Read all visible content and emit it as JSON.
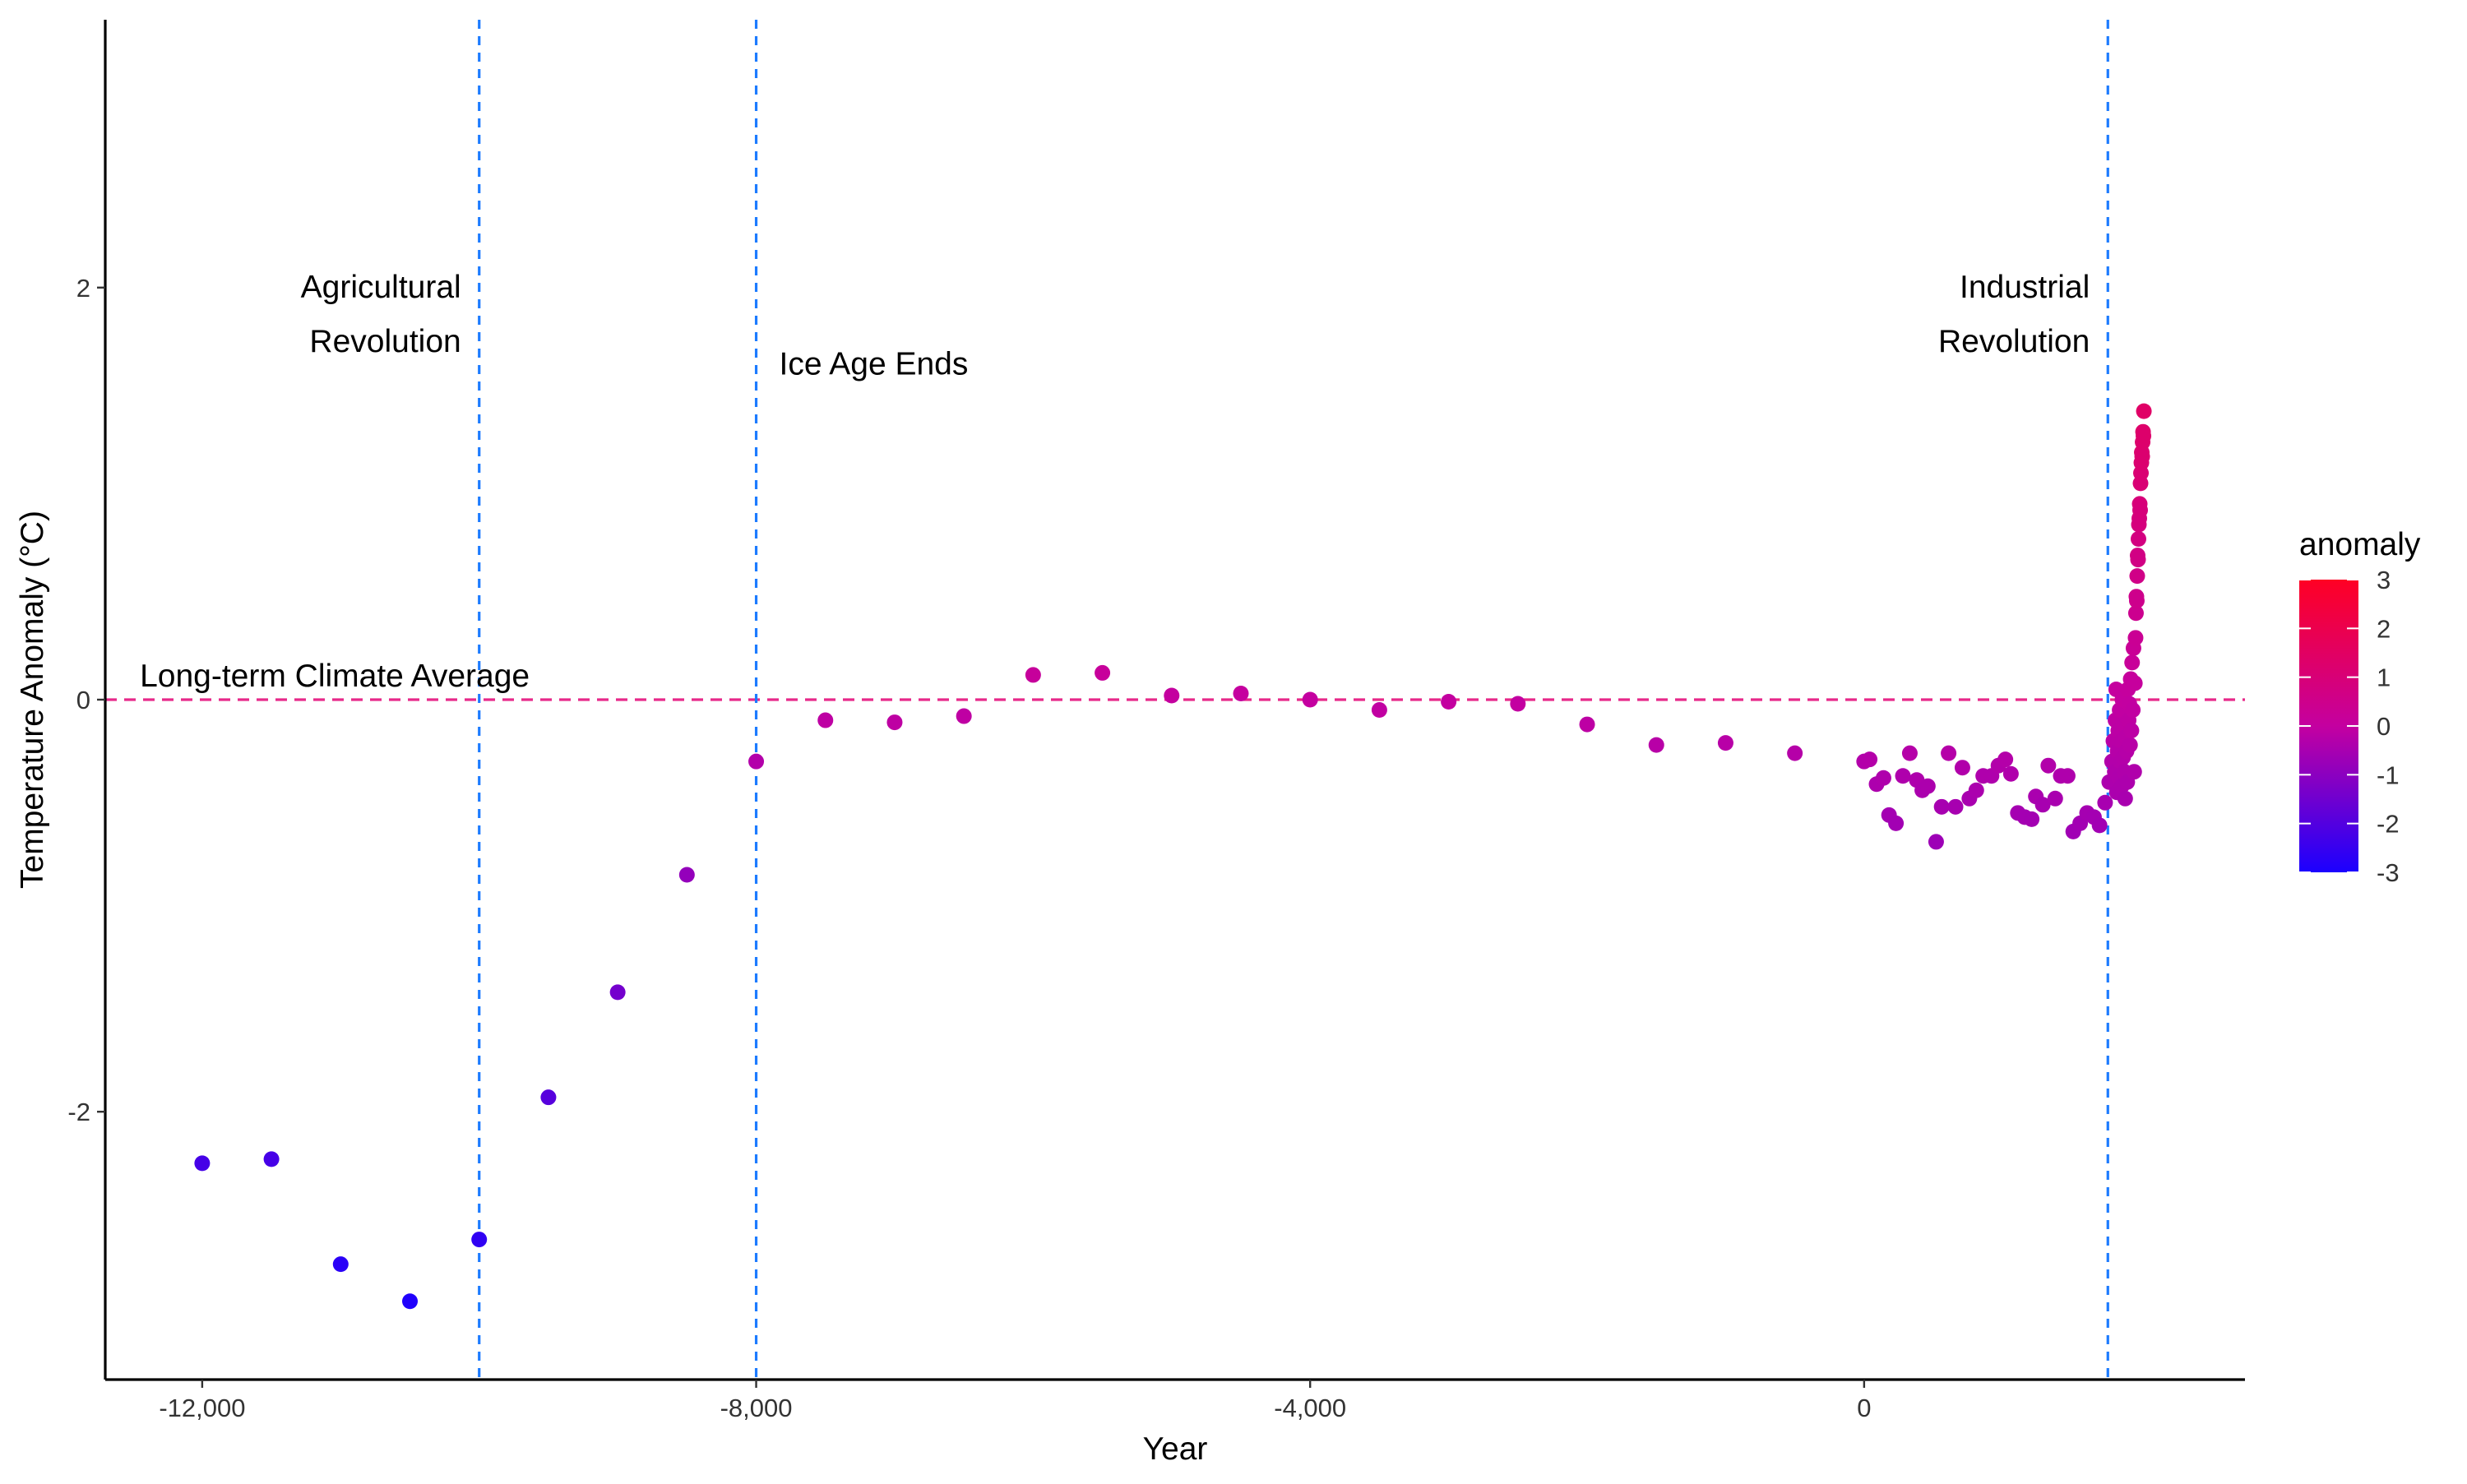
{
  "chart_data": {
    "type": "scatter",
    "xlabel": "Year",
    "ylabel": "Temperature Anomaly (°C)",
    "xlim": [
      -12700,
      2750
    ],
    "ylim": [
      -3.3,
      3.3
    ],
    "x_ticks": [
      -12000,
      -8000,
      -4000,
      0
    ],
    "x_tick_labels": [
      "-12,000",
      "-8,000",
      "-4,000",
      "0"
    ],
    "y_ticks": [
      -2,
      0,
      2
    ],
    "y_tick_labels": [
      "-2",
      "0",
      "2"
    ],
    "grid": false,
    "reference_line": {
      "y": 0,
      "color": "#E7298A",
      "style": "dashed",
      "label": "Long-term Climate Average"
    },
    "events": [
      {
        "x": -10000,
        "label_lines": [
          "Agricultural",
          "Revolution"
        ],
        "side": "left"
      },
      {
        "x": -8000,
        "label_lines": [
          "Ice Age Ends"
        ],
        "side": "right"
      },
      {
        "x": 1760,
        "label_lines": [
          "Industrial",
          "Revolution"
        ],
        "side": "left"
      }
    ],
    "event_line_color": "#1C7BFF",
    "color_scale": {
      "title": "anomaly",
      "low_color": "#1B00FF",
      "mid_color": "#C400A0",
      "high_color": "#FF0024",
      "ticks": [
        3,
        2,
        1,
        0,
        -1,
        -2,
        -3
      ],
      "tick_labels": [
        "3",
        "2",
        "1",
        "0",
        "-1",
        "-2",
        "-3"
      ],
      "placement": "right"
    },
    "points": [
      [
        -12000,
        -2.25
      ],
      [
        -11500,
        -2.23
      ],
      [
        -11000,
        -2.74
      ],
      [
        -10500,
        -2.92
      ],
      [
        -10000,
        -2.62
      ],
      [
        -9500,
        -1.93
      ],
      [
        -9000,
        -1.42
      ],
      [
        -8500,
        -0.85
      ],
      [
        -8000,
        -0.3
      ],
      [
        -7500,
        -0.1
      ],
      [
        -7000,
        -0.11
      ],
      [
        -6500,
        -0.08
      ],
      [
        -6000,
        0.12
      ],
      [
        -5500,
        0.13
      ],
      [
        -5000,
        0.02
      ],
      [
        -4500,
        0.03
      ],
      [
        -4000,
        0.0
      ],
      [
        -3500,
        -0.05
      ],
      [
        -3000,
        -0.01
      ],
      [
        -2500,
        -0.02
      ],
      [
        -2000,
        -0.12
      ],
      [
        -1500,
        -0.22
      ],
      [
        -1000,
        -0.21
      ],
      [
        -500,
        -0.26
      ],
      [
        0,
        -0.3
      ],
      [
        40,
        -0.29
      ],
      [
        90,
        -0.41
      ],
      [
        140,
        -0.38
      ],
      [
        180,
        -0.56
      ],
      [
        230,
        -0.6
      ],
      [
        280,
        -0.37
      ],
      [
        330,
        -0.26
      ],
      [
        380,
        -0.39
      ],
      [
        420,
        -0.44
      ],
      [
        460,
        -0.42
      ],
      [
        520,
        -0.69
      ],
      [
        560,
        -0.52
      ],
      [
        610,
        -0.26
      ],
      [
        660,
        -0.52
      ],
      [
        710,
        -0.33
      ],
      [
        760,
        -0.48
      ],
      [
        810,
        -0.44
      ],
      [
        860,
        -0.37
      ],
      [
        920,
        -0.37
      ],
      [
        970,
        -0.32
      ],
      [
        1020,
        -0.29
      ],
      [
        1060,
        -0.36
      ],
      [
        1110,
        -0.55
      ],
      [
        1160,
        -0.57
      ],
      [
        1210,
        -0.58
      ],
      [
        1240,
        -0.47
      ],
      [
        1290,
        -0.51
      ],
      [
        1330,
        -0.32
      ],
      [
        1380,
        -0.48
      ],
      [
        1420,
        -0.37
      ],
      [
        1470,
        -0.37
      ],
      [
        1510,
        -0.64
      ],
      [
        1560,
        -0.6
      ],
      [
        1610,
        -0.55
      ],
      [
        1660,
        -0.57
      ],
      [
        1700,
        -0.61
      ],
      [
        1740,
        -0.5
      ],
      [
        1770,
        -0.4
      ],
      [
        1790,
        -0.3
      ],
      [
        1800,
        -0.2
      ],
      [
        1810,
        -0.35
      ],
      [
        1815,
        -0.1
      ],
      [
        1820,
        0.05
      ],
      [
        1825,
        -0.45
      ],
      [
        1830,
        -0.25
      ],
      [
        1835,
        -0.15
      ],
      [
        1840,
        -0.38
      ],
      [
        1845,
        -0.05
      ],
      [
        1850,
        -0.3
      ],
      [
        1855,
        -0.2
      ],
      [
        1860,
        -0.42
      ],
      [
        1865,
        0.0
      ],
      [
        1870,
        -0.28
      ],
      [
        1875,
        -0.12
      ],
      [
        1880,
        -0.35
      ],
      [
        1885,
        -0.48
      ],
      [
        1890,
        -0.18
      ],
      [
        1895,
        -0.25
      ],
      [
        1900,
        -0.4
      ],
      [
        1905,
        0.05
      ],
      [
        1910,
        -0.1
      ],
      [
        1915,
        -0.02
      ],
      [
        1920,
        -0.22
      ],
      [
        1925,
        0.1
      ],
      [
        1930,
        -0.15
      ],
      [
        1935,
        0.18
      ],
      [
        1940,
        -0.05
      ],
      [
        1945,
        0.25
      ],
      [
        1950,
        -0.35
      ],
      [
        1955,
        0.08
      ],
      [
        1960,
        0.3
      ],
      [
        1963,
        0.42
      ],
      [
        1966,
        0.5
      ],
      [
        1969,
        0.48
      ],
      [
        1972,
        0.6
      ],
      [
        1975,
        0.7
      ],
      [
        1978,
        0.68
      ],
      [
        1981,
        0.78
      ],
      [
        1984,
        0.85
      ],
      [
        1987,
        0.88
      ],
      [
        1990,
        0.95
      ],
      [
        1993,
        0.92
      ],
      [
        1996,
        1.05
      ],
      [
        1999,
        1.1
      ],
      [
        2002,
        1.15
      ],
      [
        2005,
        1.2
      ],
      [
        2008,
        1.18
      ],
      [
        2011,
        1.25
      ],
      [
        2014,
        1.3
      ],
      [
        2017,
        1.28
      ],
      [
        2020,
        1.4
      ]
    ]
  }
}
